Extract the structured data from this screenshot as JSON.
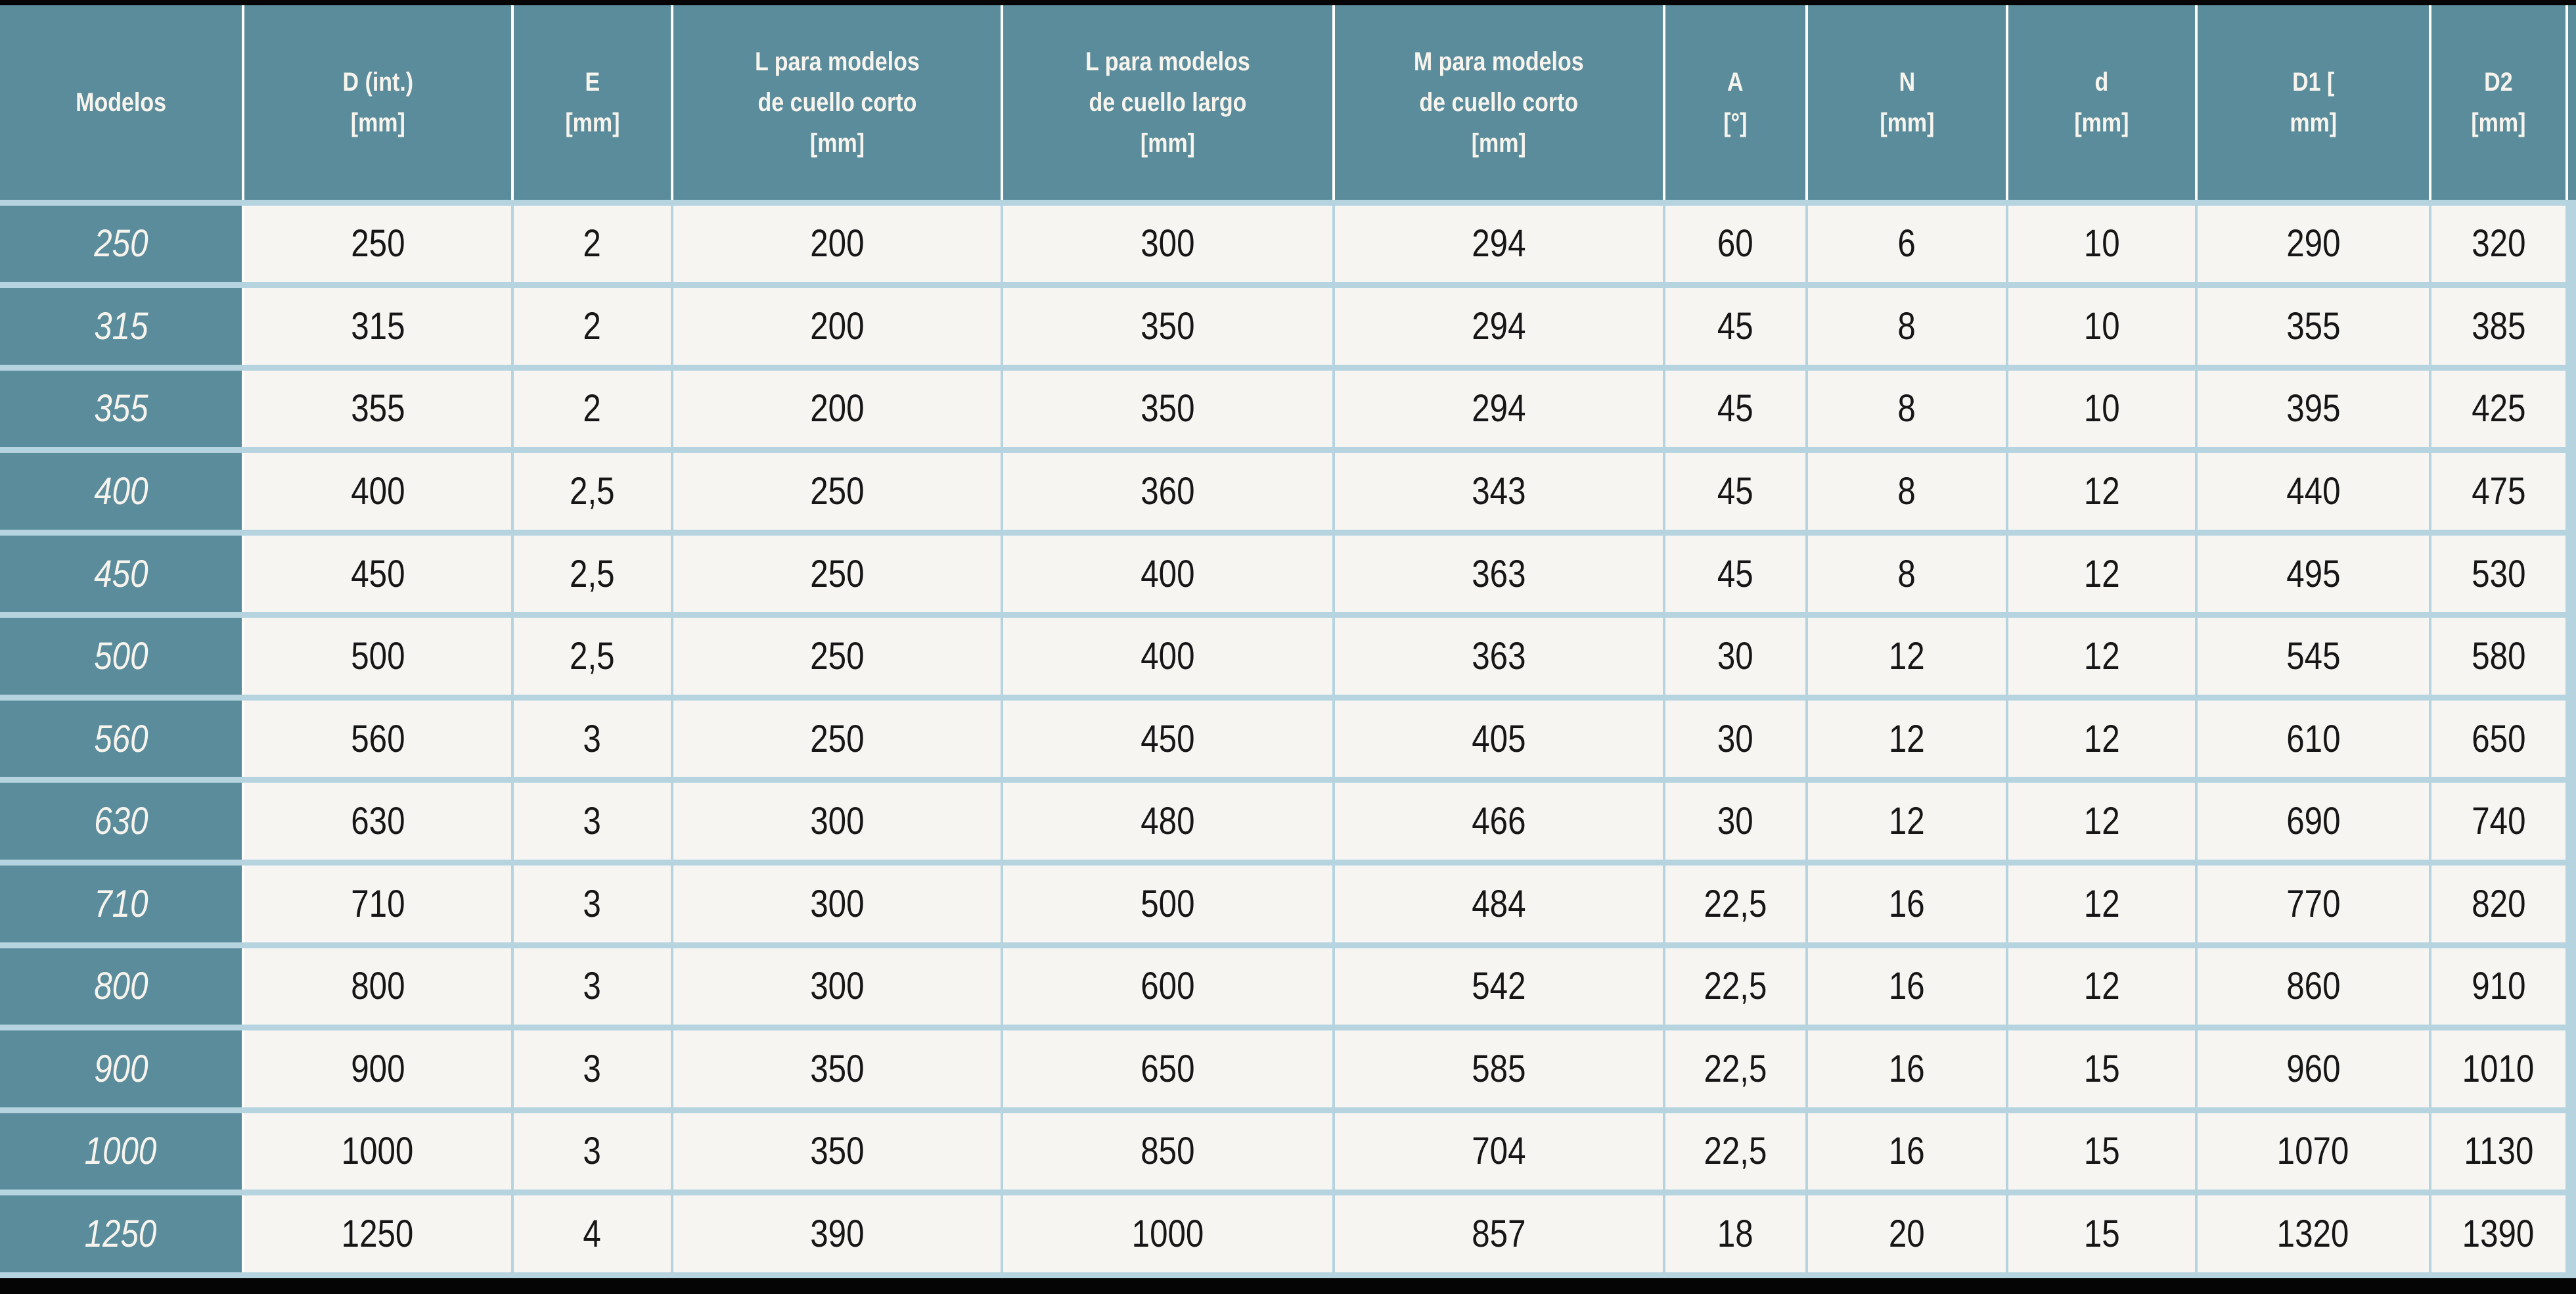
{
  "colors": {
    "header_bg": "#5B8C9B",
    "grid_border": "#B6D4E0",
    "header_separator": "#FFFFFF",
    "cell_bg": "#F7F5F2",
    "frame_bar": "#050505",
    "header_text": "#F7F4EE",
    "cell_text": "#161616"
  },
  "table": {
    "columns": [
      {
        "key": "modelos",
        "label": "Modelos"
      },
      {
        "key": "d_int",
        "label": "D (int.)\n[mm]"
      },
      {
        "key": "e",
        "label": "E\n[mm]"
      },
      {
        "key": "l_cuello_corto",
        "label": "L para modelos\nde cuello corto\n[mm]"
      },
      {
        "key": "l_cuello_largo",
        "label": "L para modelos\nde cuello largo\n[mm]"
      },
      {
        "key": "m_cuello_corto",
        "label": "M para modelos\nde cuello corto\n[mm]"
      },
      {
        "key": "a",
        "label": "A\n[°]"
      },
      {
        "key": "n",
        "label": "N\n[mm]"
      },
      {
        "key": "d",
        "label": "d\n[mm]"
      },
      {
        "key": "d1",
        "label": "D1 [\nmm]"
      },
      {
        "key": "d2",
        "label": "D2\n[mm]"
      }
    ],
    "rows": [
      [
        "250",
        "250",
        "2",
        "200",
        "300",
        "294",
        "60",
        "6",
        "10",
        "290",
        "320"
      ],
      [
        "315",
        "315",
        "2",
        "200",
        "350",
        "294",
        "45",
        "8",
        "10",
        "355",
        "385"
      ],
      [
        "355",
        "355",
        "2",
        "200",
        "350",
        "294",
        "45",
        "8",
        "10",
        "395",
        "425"
      ],
      [
        "400",
        "400",
        "2,5",
        "250",
        "360",
        "343",
        "45",
        "8",
        "12",
        "440",
        "475"
      ],
      [
        "450",
        "450",
        "2,5",
        "250",
        "400",
        "363",
        "45",
        "8",
        "12",
        "495",
        "530"
      ],
      [
        "500",
        "500",
        "2,5",
        "250",
        "400",
        "363",
        "30",
        "12",
        "12",
        "545",
        "580"
      ],
      [
        "560",
        "560",
        "3",
        "250",
        "450",
        "405",
        "30",
        "12",
        "12",
        "610",
        "650"
      ],
      [
        "630",
        "630",
        "3",
        "300",
        "480",
        "466",
        "30",
        "12",
        "12",
        "690",
        "740"
      ],
      [
        "710",
        "710",
        "3",
        "300",
        "500",
        "484",
        "22,5",
        "16",
        "12",
        "770",
        "820"
      ],
      [
        "800",
        "800",
        "3",
        "300",
        "600",
        "542",
        "22,5",
        "16",
        "12",
        "860",
        "910"
      ],
      [
        "900",
        "900",
        "3",
        "350",
        "650",
        "585",
        "22,5",
        "16",
        "15",
        "960",
        "1010"
      ],
      [
        "1000",
        "1000",
        "3",
        "350",
        "850",
        "704",
        "22,5",
        "16",
        "15",
        "1070",
        "1130"
      ],
      [
        "1250",
        "1250",
        "4",
        "390",
        "1000",
        "857",
        "18",
        "20",
        "15",
        "1320",
        "1390"
      ]
    ]
  }
}
